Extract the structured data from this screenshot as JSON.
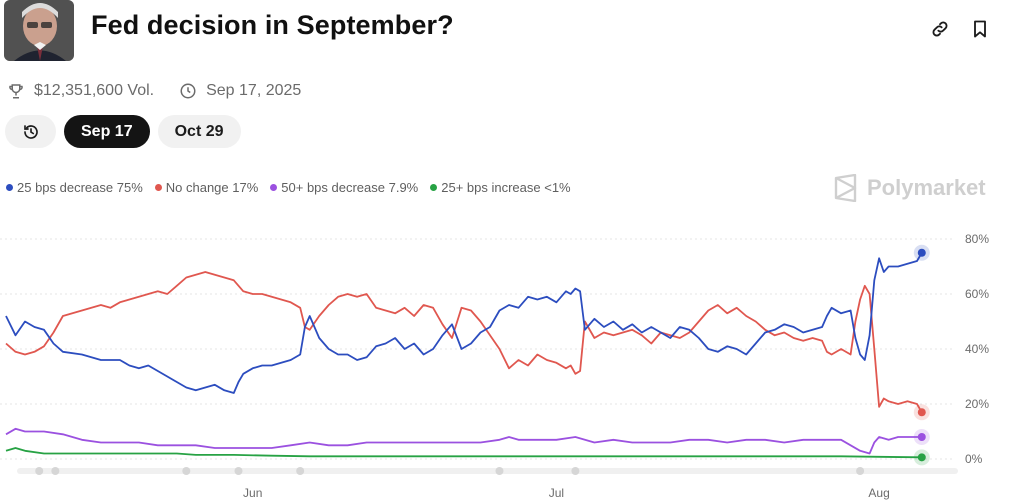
{
  "header": {
    "title": "Fed decision in September?",
    "avatar_icon": "portrait-photo",
    "link_icon": "link-icon",
    "bookmark_icon": "bookmark-icon"
  },
  "meta": {
    "volume": "$12,351,600 Vol.",
    "date": "Sep 17, 2025"
  },
  "chips": [
    {
      "label": "",
      "icon": "history-icon"
    },
    {
      "label": "Sep 17",
      "active": true
    },
    {
      "label": "Oct 29"
    }
  ],
  "legend": [
    {
      "label": "25 bps decrease 75%",
      "color": "#2c4dbf"
    },
    {
      "label": "No change 17%",
      "color": "#e0574f"
    },
    {
      "label": "50+ bps decrease 7.9%",
      "color": "#9b51e0"
    },
    {
      "label": "25+ bps increase <1%",
      "color": "#27a244"
    }
  ],
  "brand": "Polymarket",
  "chart_data": {
    "type": "line",
    "y_ticks": [
      "80%",
      "60%",
      "40%",
      "20%",
      "0%"
    ],
    "ylim": [
      0,
      85
    ],
    "x_ticks": [
      {
        "label": "Jun",
        "t": 0.26
      },
      {
        "label": "Jul",
        "t": 0.58
      },
      {
        "label": "Aug",
        "t": 0.92
      }
    ],
    "series": [
      {
        "name": "25 bps decrease",
        "color": "#2c4dbf",
        "points": [
          [
            0.0,
            52
          ],
          [
            0.01,
            45
          ],
          [
            0.02,
            50
          ],
          [
            0.03,
            48
          ],
          [
            0.04,
            47
          ],
          [
            0.05,
            42
          ],
          [
            0.06,
            39
          ],
          [
            0.08,
            38
          ],
          [
            0.1,
            36
          ],
          [
            0.12,
            36
          ],
          [
            0.13,
            34
          ],
          [
            0.14,
            33
          ],
          [
            0.15,
            34
          ],
          [
            0.16,
            32
          ],
          [
            0.17,
            30
          ],
          [
            0.18,
            28
          ],
          [
            0.19,
            26
          ],
          [
            0.2,
            25
          ],
          [
            0.21,
            26
          ],
          [
            0.22,
            27
          ],
          [
            0.23,
            25
          ],
          [
            0.24,
            24
          ],
          [
            0.245,
            28
          ],
          [
            0.25,
            31
          ],
          [
            0.26,
            33
          ],
          [
            0.27,
            34
          ],
          [
            0.28,
            34
          ],
          [
            0.29,
            35
          ],
          [
            0.3,
            36
          ],
          [
            0.31,
            38
          ],
          [
            0.315,
            48
          ],
          [
            0.32,
            52
          ],
          [
            0.33,
            44
          ],
          [
            0.34,
            40
          ],
          [
            0.35,
            38
          ],
          [
            0.36,
            38
          ],
          [
            0.37,
            36
          ],
          [
            0.38,
            37
          ],
          [
            0.39,
            41
          ],
          [
            0.4,
            42
          ],
          [
            0.41,
            44
          ],
          [
            0.42,
            40
          ],
          [
            0.43,
            42
          ],
          [
            0.44,
            38
          ],
          [
            0.45,
            40
          ],
          [
            0.46,
            45
          ],
          [
            0.47,
            49
          ],
          [
            0.48,
            40
          ],
          [
            0.49,
            42
          ],
          [
            0.5,
            46
          ],
          [
            0.51,
            48
          ],
          [
            0.52,
            54
          ],
          [
            0.53,
            56
          ],
          [
            0.54,
            55
          ],
          [
            0.55,
            59
          ],
          [
            0.56,
            58
          ],
          [
            0.57,
            59
          ],
          [
            0.58,
            57
          ],
          [
            0.59,
            61
          ],
          [
            0.595,
            60
          ],
          [
            0.6,
            62
          ],
          [
            0.605,
            61
          ],
          [
            0.61,
            47
          ],
          [
            0.62,
            51
          ],
          [
            0.63,
            48
          ],
          [
            0.64,
            50
          ],
          [
            0.65,
            47
          ],
          [
            0.66,
            49
          ],
          [
            0.67,
            46
          ],
          [
            0.68,
            48
          ],
          [
            0.69,
            46
          ],
          [
            0.7,
            44
          ],
          [
            0.71,
            48
          ],
          [
            0.72,
            47
          ],
          [
            0.73,
            44
          ],
          [
            0.74,
            40
          ],
          [
            0.75,
            39
          ],
          [
            0.76,
            41
          ],
          [
            0.77,
            40
          ],
          [
            0.78,
            38
          ],
          [
            0.79,
            42
          ],
          [
            0.8,
            46
          ],
          [
            0.81,
            47
          ],
          [
            0.82,
            49
          ],
          [
            0.83,
            48
          ],
          [
            0.84,
            46
          ],
          [
            0.85,
            47
          ],
          [
            0.86,
            48
          ],
          [
            0.865,
            52
          ],
          [
            0.87,
            55
          ],
          [
            0.88,
            53
          ],
          [
            0.89,
            54
          ],
          [
            0.895,
            44
          ],
          [
            0.9,
            38
          ],
          [
            0.905,
            36
          ],
          [
            0.91,
            45
          ],
          [
            0.915,
            65
          ],
          [
            0.92,
            73
          ],
          [
            0.925,
            68
          ],
          [
            0.93,
            70
          ],
          [
            0.94,
            70
          ],
          [
            0.95,
            71
          ],
          [
            0.96,
            72
          ],
          [
            0.965,
            75
          ]
        ]
      },
      {
        "name": "No change",
        "color": "#e0574f",
        "points": [
          [
            0.0,
            42
          ],
          [
            0.01,
            39
          ],
          [
            0.02,
            38
          ],
          [
            0.03,
            39
          ],
          [
            0.04,
            41
          ],
          [
            0.05,
            46
          ],
          [
            0.06,
            52
          ],
          [
            0.07,
            53
          ],
          [
            0.08,
            54
          ],
          [
            0.09,
            55
          ],
          [
            0.1,
            56
          ],
          [
            0.11,
            55
          ],
          [
            0.12,
            57
          ],
          [
            0.13,
            58
          ],
          [
            0.14,
            59
          ],
          [
            0.15,
            60
          ],
          [
            0.16,
            61
          ],
          [
            0.17,
            60
          ],
          [
            0.18,
            63
          ],
          [
            0.19,
            66
          ],
          [
            0.2,
            67
          ],
          [
            0.21,
            68
          ],
          [
            0.22,
            67
          ],
          [
            0.23,
            66
          ],
          [
            0.24,
            65
          ],
          [
            0.25,
            61
          ],
          [
            0.26,
            60
          ],
          [
            0.27,
            60
          ],
          [
            0.28,
            59
          ],
          [
            0.29,
            58
          ],
          [
            0.3,
            57
          ],
          [
            0.31,
            55
          ],
          [
            0.315,
            48
          ],
          [
            0.32,
            47
          ],
          [
            0.33,
            52
          ],
          [
            0.34,
            56
          ],
          [
            0.35,
            59
          ],
          [
            0.36,
            60
          ],
          [
            0.37,
            59
          ],
          [
            0.38,
            60
          ],
          [
            0.39,
            55
          ],
          [
            0.4,
            54
          ],
          [
            0.41,
            53
          ],
          [
            0.42,
            55
          ],
          [
            0.43,
            52
          ],
          [
            0.44,
            56
          ],
          [
            0.45,
            55
          ],
          [
            0.46,
            49
          ],
          [
            0.47,
            44
          ],
          [
            0.48,
            55
          ],
          [
            0.49,
            54
          ],
          [
            0.5,
            50
          ],
          [
            0.51,
            45
          ],
          [
            0.52,
            40
          ],
          [
            0.53,
            33
          ],
          [
            0.54,
            36
          ],
          [
            0.55,
            34
          ],
          [
            0.56,
            38
          ],
          [
            0.57,
            36
          ],
          [
            0.58,
            35
          ],
          [
            0.59,
            33
          ],
          [
            0.595,
            34
          ],
          [
            0.6,
            31
          ],
          [
            0.605,
            32
          ],
          [
            0.61,
            50
          ],
          [
            0.62,
            44
          ],
          [
            0.63,
            46
          ],
          [
            0.64,
            45
          ],
          [
            0.65,
            46
          ],
          [
            0.66,
            47
          ],
          [
            0.67,
            45
          ],
          [
            0.68,
            42
          ],
          [
            0.69,
            46
          ],
          [
            0.7,
            45
          ],
          [
            0.71,
            44
          ],
          [
            0.72,
            46
          ],
          [
            0.73,
            50
          ],
          [
            0.74,
            54
          ],
          [
            0.75,
            56
          ],
          [
            0.76,
            53
          ],
          [
            0.77,
            55
          ],
          [
            0.78,
            52
          ],
          [
            0.79,
            50
          ],
          [
            0.8,
            47
          ],
          [
            0.81,
            45
          ],
          [
            0.82,
            46
          ],
          [
            0.83,
            44
          ],
          [
            0.84,
            43
          ],
          [
            0.85,
            44
          ],
          [
            0.86,
            43
          ],
          [
            0.865,
            39
          ],
          [
            0.87,
            38
          ],
          [
            0.88,
            40
          ],
          [
            0.89,
            38
          ],
          [
            0.895,
            50
          ],
          [
            0.9,
            58
          ],
          [
            0.905,
            63
          ],
          [
            0.91,
            60
          ],
          [
            0.915,
            40
          ],
          [
            0.92,
            19
          ],
          [
            0.925,
            22
          ],
          [
            0.93,
            21
          ],
          [
            0.94,
            20
          ],
          [
            0.95,
            21
          ],
          [
            0.96,
            20
          ],
          [
            0.965,
            17
          ]
        ]
      },
      {
        "name": "50+ bps decrease",
        "color": "#9b51e0",
        "points": [
          [
            0.0,
            9
          ],
          [
            0.01,
            11
          ],
          [
            0.02,
            10
          ],
          [
            0.04,
            10
          ],
          [
            0.06,
            9
          ],
          [
            0.08,
            7
          ],
          [
            0.1,
            6
          ],
          [
            0.12,
            6
          ],
          [
            0.14,
            6
          ],
          [
            0.16,
            5
          ],
          [
            0.18,
            5
          ],
          [
            0.2,
            5
          ],
          [
            0.22,
            4
          ],
          [
            0.24,
            4
          ],
          [
            0.26,
            4
          ],
          [
            0.28,
            4
          ],
          [
            0.3,
            5
          ],
          [
            0.32,
            6
          ],
          [
            0.34,
            5
          ],
          [
            0.36,
            5
          ],
          [
            0.38,
            6
          ],
          [
            0.4,
            6
          ],
          [
            0.42,
            6
          ],
          [
            0.44,
            6
          ],
          [
            0.46,
            6
          ],
          [
            0.48,
            6
          ],
          [
            0.5,
            6
          ],
          [
            0.52,
            7
          ],
          [
            0.53,
            8
          ],
          [
            0.54,
            7
          ],
          [
            0.56,
            7
          ],
          [
            0.58,
            7
          ],
          [
            0.6,
            8
          ],
          [
            0.62,
            6
          ],
          [
            0.64,
            7
          ],
          [
            0.66,
            6
          ],
          [
            0.68,
            6
          ],
          [
            0.7,
            6
          ],
          [
            0.72,
            7
          ],
          [
            0.74,
            7
          ],
          [
            0.76,
            6
          ],
          [
            0.78,
            7
          ],
          [
            0.8,
            7
          ],
          [
            0.82,
            6
          ],
          [
            0.84,
            7
          ],
          [
            0.86,
            7
          ],
          [
            0.88,
            7
          ],
          [
            0.9,
            3
          ],
          [
            0.91,
            2
          ],
          [
            0.915,
            6
          ],
          [
            0.92,
            8
          ],
          [
            0.93,
            7
          ],
          [
            0.94,
            8
          ],
          [
            0.95,
            8
          ],
          [
            0.965,
            8
          ]
        ]
      },
      {
        "name": "25+ bps increase",
        "color": "#27a244",
        "points": [
          [
            0.0,
            3
          ],
          [
            0.01,
            4
          ],
          [
            0.02,
            3
          ],
          [
            0.04,
            2
          ],
          [
            0.06,
            2
          ],
          [
            0.08,
            2
          ],
          [
            0.1,
            2
          ],
          [
            0.12,
            2
          ],
          [
            0.14,
            2
          ],
          [
            0.16,
            2
          ],
          [
            0.18,
            2
          ],
          [
            0.2,
            1.5
          ],
          [
            0.24,
            1.5
          ],
          [
            0.28,
            1.2
          ],
          [
            0.32,
            1
          ],
          [
            0.36,
            1
          ],
          [
            0.4,
            1
          ],
          [
            0.44,
            1
          ],
          [
            0.48,
            1
          ],
          [
            0.52,
            1
          ],
          [
            0.56,
            1
          ],
          [
            0.6,
            1
          ],
          [
            0.64,
            1
          ],
          [
            0.68,
            1
          ],
          [
            0.72,
            1
          ],
          [
            0.76,
            1
          ],
          [
            0.8,
            1
          ],
          [
            0.84,
            1
          ],
          [
            0.88,
            1
          ],
          [
            0.92,
            0.8
          ],
          [
            0.965,
            0.6
          ]
        ]
      }
    ],
    "event_markers": [
      0.035,
      0.052,
      0.19,
      0.245,
      0.31,
      0.52,
      0.6,
      0.9
    ]
  }
}
